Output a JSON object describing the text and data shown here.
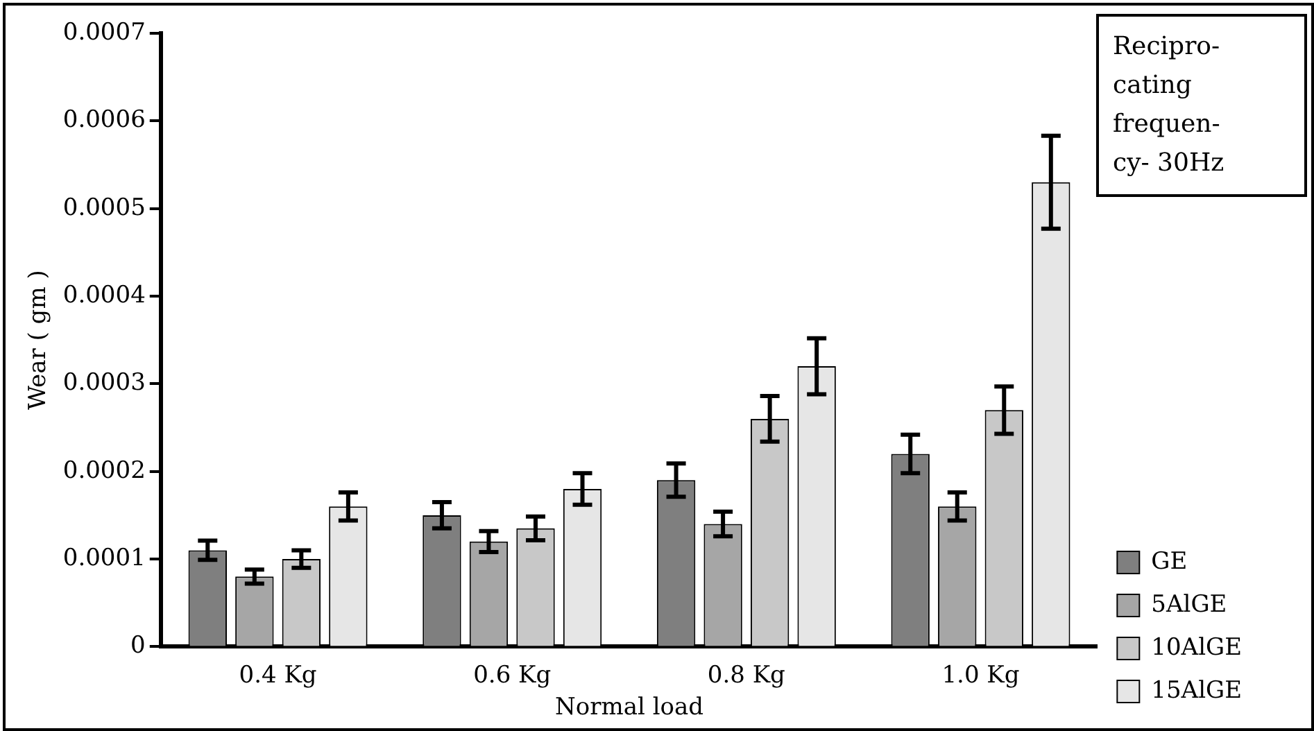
{
  "chart_data": {
    "type": "bar",
    "xlabel": "Normal load",
    "ylabel": "Wear ( gm )",
    "categories": [
      "0.4 Kg",
      "0.6 Kg",
      "0.8 Kg",
      "1.0 Kg"
    ],
    "series": [
      {
        "name": "GE",
        "color": "#7f7f7f",
        "values": [
          0.00011,
          0.00015,
          0.00019,
          0.00022
        ],
        "errors": [
          1.1e-05,
          1.5e-05,
          1.9e-05,
          2.2e-05
        ]
      },
      {
        "name": "5AlGE",
        "color": "#a6a6a6",
        "values": [
          8e-05,
          0.00012,
          0.00014,
          0.00016
        ],
        "errors": [
          8e-06,
          1.2e-05,
          1.4e-05,
          1.6e-05
        ]
      },
      {
        "name": "10AlGE",
        "color": "#c8c8c8",
        "values": [
          0.0001,
          0.000135,
          0.00026,
          0.00027
        ],
        "errors": [
          1e-05,
          1.35e-05,
          2.6e-05,
          2.7e-05
        ]
      },
      {
        "name": "15AlGE",
        "color": "#e6e6e6",
        "values": [
          0.00016,
          0.00018,
          0.00032,
          0.00053
        ],
        "errors": [
          1.6e-05,
          1.8e-05,
          3.2e-05,
          5.3e-05
        ]
      }
    ],
    "ylim": [
      0,
      0.0007
    ],
    "yticks": [
      0,
      0.0001,
      0.0002,
      0.0003,
      0.0004,
      0.0005,
      0.0006,
      0.0007
    ],
    "grid": false,
    "legend": "right",
    "annotations": [
      "Recipro-\ncating\nfrequen-\ncy- 30Hz"
    ]
  }
}
